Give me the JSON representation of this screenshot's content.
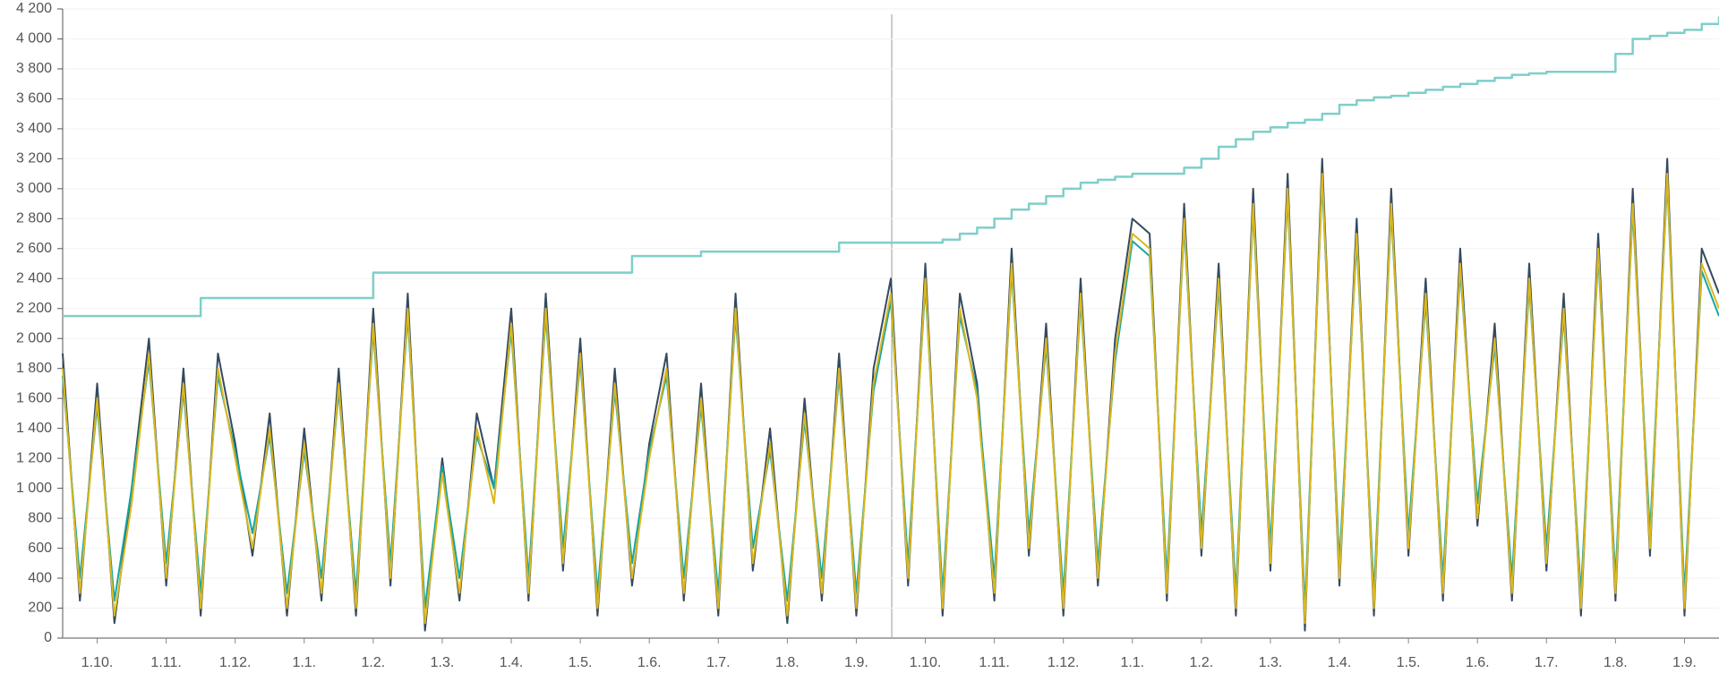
{
  "chart_data": {
    "type": "line",
    "x": [
      0,
      0.25,
      0.5,
      0.75,
      1,
      1.25,
      1.5,
      1.75,
      2,
      2.25,
      2.5,
      2.75,
      3,
      3.25,
      3.5,
      3.75,
      4,
      4.25,
      4.5,
      4.75,
      5,
      5.25,
      5.5,
      5.75,
      6,
      6.25,
      6.5,
      6.75,
      7,
      7.25,
      7.5,
      7.75,
      8,
      8.25,
      8.5,
      8.75,
      9,
      9.25,
      9.5,
      9.75,
      10,
      10.25,
      10.5,
      10.75,
      11,
      11.25,
      11.5,
      11.75,
      12,
      12.25,
      12.5,
      12.75,
      13,
      13.25,
      13.5,
      13.75,
      14,
      14.25,
      14.5,
      14.75,
      15,
      15.25,
      15.5,
      15.75,
      16,
      16.25,
      16.5,
      16.75,
      17,
      17.25,
      17.5,
      17.75,
      18,
      18.25,
      18.5,
      18.75,
      19,
      19.25,
      19.5,
      19.75,
      20,
      20.25,
      20.5,
      20.75,
      21,
      21.25,
      21.5,
      21.75,
      22,
      22.25,
      22.5,
      22.75,
      23,
      23.25,
      23.5,
      23.75,
      24
    ],
    "series": [
      {
        "color": "#34495e",
        "values": [
          1900,
          250,
          1700,
          100,
          1000,
          2000,
          350,
          1800,
          150,
          1900,
          1300,
          550,
          1500,
          150,
          1400,
          250,
          1800,
          150,
          2200,
          350,
          2300,
          50,
          1200,
          250,
          1500,
          1000,
          2200,
          250,
          2300,
          450,
          2000,
          150,
          1800,
          350,
          1300,
          1900,
          250,
          1700,
          150,
          2300,
          450,
          1400,
          100,
          1600,
          250,
          1900,
          150,
          1800,
          2400,
          350,
          2500,
          150,
          2300,
          1700,
          250,
          2600,
          550,
          2100,
          150,
          2400,
          350,
          2000,
          2800,
          2700,
          250,
          2900,
          550,
          2500,
          150,
          3000,
          450,
          3100,
          50,
          3200,
          350,
          2800,
          150,
          3000,
          550,
          2400,
          250,
          2600,
          750,
          2100,
          250,
          2500,
          450,
          2300,
          150,
          2700,
          250,
          3000,
          550,
          3200,
          150,
          2600,
          2300
        ]
      },
      {
        "color": "#16a5a5",
        "values": [
          1750,
          400,
          1550,
          250,
          1000,
          1850,
          500,
          1650,
          300,
          1750,
          1250,
          700,
          1350,
          300,
          1250,
          400,
          1650,
          300,
          2050,
          500,
          2150,
          200,
          1150,
          400,
          1350,
          1000,
          2050,
          400,
          2150,
          600,
          1850,
          300,
          1650,
          500,
          1250,
          1750,
          400,
          1550,
          300,
          2150,
          600,
          1250,
          250,
          1450,
          400,
          1750,
          300,
          1650,
          2250,
          500,
          2350,
          300,
          2150,
          1650,
          400,
          2450,
          700,
          1950,
          300,
          2250,
          500,
          1850,
          2650,
          2550,
          400,
          2750,
          700,
          2350,
          300,
          2850,
          600,
          2950,
          200,
          3050,
          500,
          2650,
          300,
          2850,
          700,
          2250,
          400,
          2450,
          900,
          1950,
          400,
          2350,
          600,
          2150,
          300,
          2550,
          400,
          2850,
          700,
          3050,
          300,
          2450,
          2150
        ]
      },
      {
        "color": "#dcb81e",
        "values": [
          1800,
          300,
          1600,
          150,
          900,
          1900,
          400,
          1700,
          200,
          1800,
          1200,
          600,
          1400,
          200,
          1300,
          300,
          1700,
          200,
          2100,
          400,
          2200,
          100,
          1100,
          300,
          1400,
          900,
          2100,
          300,
          2200,
          500,
          1900,
          200,
          1700,
          400,
          1200,
          1800,
          300,
          1600,
          200,
          2200,
          500,
          1300,
          150,
          1500,
          300,
          1800,
          200,
          1700,
          2300,
          400,
          2400,
          200,
          2200,
          1600,
          300,
          2500,
          600,
          2000,
          200,
          2300,
          400,
          1900,
          2700,
          2600,
          300,
          2800,
          600,
          2400,
          200,
          2900,
          500,
          3000,
          100,
          3100,
          400,
          2700,
          200,
          2900,
          600,
          2300,
          300,
          2500,
          800,
          2000,
          300,
          2400,
          500,
          2200,
          200,
          2600,
          300,
          2900,
          600,
          3100,
          200,
          2500,
          2200
        ]
      },
      {
        "color": "#7fcfc9",
        "step": true,
        "values": [
          2150,
          2150,
          2150,
          2150,
          2150,
          2150,
          2150,
          2150,
          2270,
          2270,
          2270,
          2270,
          2270,
          2270,
          2270,
          2270,
          2270,
          2270,
          2440,
          2440,
          2440,
          2440,
          2440,
          2440,
          2440,
          2440,
          2440,
          2440,
          2440,
          2440,
          2440,
          2440,
          2440,
          2550,
          2550,
          2550,
          2550,
          2580,
          2580,
          2580,
          2580,
          2580,
          2580,
          2580,
          2580,
          2640,
          2640,
          2640,
          2640,
          2640,
          2640,
          2660,
          2700,
          2740,
          2800,
          2860,
          2900,
          2950,
          3000,
          3040,
          3060,
          3080,
          3100,
          3100,
          3100,
          3140,
          3200,
          3280,
          3330,
          3380,
          3410,
          3440,
          3460,
          3500,
          3560,
          3590,
          3610,
          3620,
          3640,
          3660,
          3680,
          3700,
          3720,
          3740,
          3760,
          3770,
          3780,
          3780,
          3780,
          3780,
          3900,
          4000,
          4020,
          4040,
          4060,
          4100,
          4150
        ]
      }
    ],
    "xlim": [
      0,
      24
    ],
    "xticks": [
      {
        "value": 0.5,
        "label": "1.10."
      },
      {
        "value": 1.5,
        "label": "1.11."
      },
      {
        "value": 2.5,
        "label": "1.12."
      },
      {
        "value": 3.5,
        "label": "1.1."
      },
      {
        "value": 4.5,
        "label": "1.2."
      },
      {
        "value": 5.5,
        "label": "1.3."
      },
      {
        "value": 6.5,
        "label": "1.4."
      },
      {
        "value": 7.5,
        "label": "1.5."
      },
      {
        "value": 8.5,
        "label": "1.6."
      },
      {
        "value": 9.5,
        "label": "1.7."
      },
      {
        "value": 10.5,
        "label": "1.8."
      },
      {
        "value": 11.5,
        "label": "1.9."
      },
      {
        "value": 12.5,
        "label": "1.10."
      },
      {
        "value": 13.5,
        "label": "1.11."
      },
      {
        "value": 14.5,
        "label": "1.12."
      },
      {
        "value": 15.5,
        "label": "1.1."
      },
      {
        "value": 16.5,
        "label": "1.2."
      },
      {
        "value": 17.5,
        "label": "1.3."
      },
      {
        "value": 18.5,
        "label": "1.4."
      },
      {
        "value": 19.5,
        "label": "1.5."
      },
      {
        "value": 20.5,
        "label": "1.6."
      },
      {
        "value": 21.5,
        "label": "1.7."
      },
      {
        "value": 22.5,
        "label": "1.8."
      },
      {
        "value": 23.5,
        "label": "1.9."
      }
    ],
    "ylim": [
      0,
      4200
    ],
    "yticks": [
      0,
      200,
      400,
      600,
      800,
      {
        "value": 1000,
        "label": "1 000"
      },
      {
        "value": 1200,
        "label": "1 200"
      },
      {
        "value": 1400,
        "label": "1 400"
      },
      {
        "value": 1600,
        "label": "1 600"
      },
      {
        "value": 1800,
        "label": "1 800"
      },
      {
        "value": 2000,
        "label": "2 000"
      },
      {
        "value": 2200,
        "label": "2 200"
      },
      {
        "value": 2400,
        "label": "2 400"
      },
      {
        "value": 2600,
        "label": "2 600"
      },
      {
        "value": 2800,
        "label": "2 800"
      },
      {
        "value": 3000,
        "label": "3 000"
      },
      {
        "value": 3200,
        "label": "3 200"
      },
      {
        "value": 3400,
        "label": "3 400"
      },
      {
        "value": 3600,
        "label": "3 600"
      },
      {
        "value": 3800,
        "label": "3 800"
      },
      {
        "value": 4000,
        "label": "4 000"
      },
      {
        "value": 4200,
        "label": "4 200"
      }
    ],
    "grid": true
  }
}
